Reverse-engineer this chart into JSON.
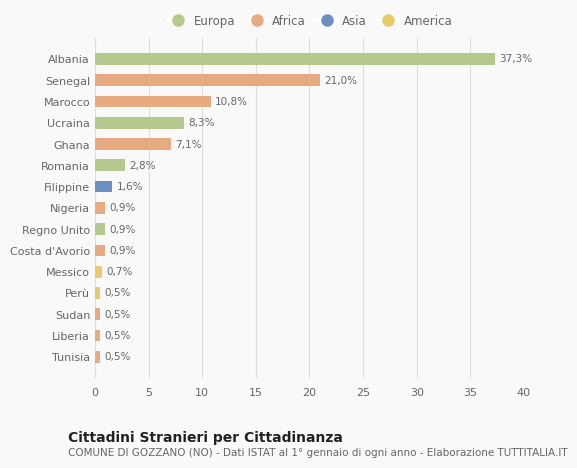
{
  "categories": [
    "Albania",
    "Senegal",
    "Marocco",
    "Ucraina",
    "Ghana",
    "Romania",
    "Filippine",
    "Nigeria",
    "Regno Unito",
    "Costa d'Avorio",
    "Messico",
    "Perù",
    "Sudan",
    "Liberia",
    "Tunisia"
  ],
  "values": [
    37.3,
    21.0,
    10.8,
    8.3,
    7.1,
    2.8,
    1.6,
    0.9,
    0.9,
    0.9,
    0.7,
    0.5,
    0.5,
    0.5,
    0.5
  ],
  "labels": [
    "37,3%",
    "21,0%",
    "10,8%",
    "8,3%",
    "7,1%",
    "2,8%",
    "1,6%",
    "0,9%",
    "0,9%",
    "0,9%",
    "0,7%",
    "0,5%",
    "0,5%",
    "0,5%",
    "0,5%"
  ],
  "continents": [
    "Europa",
    "Africa",
    "Africa",
    "Europa",
    "Africa",
    "Europa",
    "Asia",
    "Africa",
    "Europa",
    "Africa",
    "America",
    "America",
    "Africa",
    "Africa",
    "Africa"
  ],
  "colors": {
    "Europa": "#b5c98e",
    "Africa": "#e8aa80",
    "Asia": "#6b8fbf",
    "America": "#e8c96b"
  },
  "legend_order": [
    "Europa",
    "Africa",
    "Asia",
    "America"
  ],
  "title": "Cittadini Stranieri per Cittadinanza",
  "subtitle": "COMUNE DI GOZZANO (NO) - Dati ISTAT al 1° gennaio di ogni anno - Elaborazione TUTTITALIA.IT",
  "xlim": [
    0,
    40
  ],
  "xticks": [
    0,
    5,
    10,
    15,
    20,
    25,
    30,
    35,
    40
  ],
  "background_color": "#f9f9f9",
  "grid_color": "#dddddd",
  "text_color": "#666666",
  "title_color": "#222222",
  "bar_height": 0.55,
  "label_fontsize": 7.5,
  "ytick_fontsize": 8,
  "xtick_fontsize": 8,
  "legend_fontsize": 8.5,
  "title_fontsize": 10,
  "subtitle_fontsize": 7.5
}
